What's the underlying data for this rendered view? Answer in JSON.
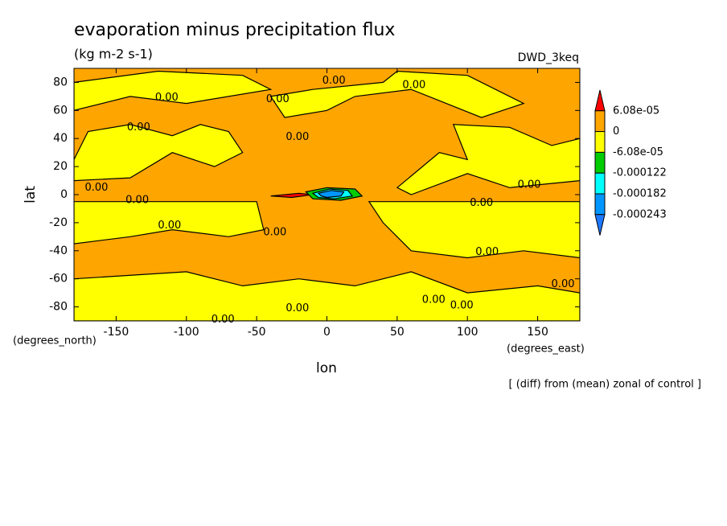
{
  "chart_data": {
    "type": "contour",
    "title": "evaporation minus precipitation flux",
    "subtitle": "(kg m-2 s-1)",
    "source": "DWD_3keq",
    "x_label": "lon",
    "y_label": "lat",
    "x_units": "(degrees_east)",
    "y_units": "(degrees_north)",
    "footnote": "[ (diff) from (mean) zonal of control ]",
    "xlim": [
      -180,
      180
    ],
    "xticks": [
      -150,
      -100,
      -50,
      0,
      50,
      100,
      150
    ],
    "ylim": [
      -90,
      90
    ],
    "yticks": [
      -80,
      -60,
      -40,
      -20,
      0,
      20,
      40,
      60,
      80
    ],
    "background_color": "#ffa500",
    "regions": [
      {
        "color": "#ffff00",
        "lon": [
          -180,
          -170,
          -140,
          -110,
          -90,
          -70,
          -60,
          -80,
          -110,
          -140,
          -180
        ],
        "lat": [
          25,
          45,
          50,
          42,
          50,
          45,
          30,
          20,
          30,
          12,
          10
        ]
      },
      {
        "color": "#ffff00",
        "lon": [
          50,
          80,
          100,
          90,
          130,
          160,
          180,
          180,
          130,
          100,
          60
        ],
        "lat": [
          5,
          30,
          25,
          50,
          48,
          35,
          40,
          10,
          5,
          15,
          0
        ]
      },
      {
        "color": "#ffff00",
        "lon": [
          -180,
          -120,
          -60,
          -40,
          -100,
          -140,
          -180
        ],
        "lat": [
          80,
          88,
          85,
          75,
          65,
          70,
          60
        ]
      },
      {
        "color": "#ffff00",
        "lon": [
          -40,
          -10,
          40,
          50,
          100,
          140,
          110,
          60,
          20,
          0,
          -30
        ],
        "lat": [
          70,
          75,
          80,
          88,
          85,
          65,
          55,
          75,
          70,
          60,
          55
        ]
      },
      {
        "color": "#ffff00",
        "lon": [
          -180,
          -50,
          -45,
          -70,
          -110,
          -140,
          -180
        ],
        "lat": [
          -5,
          -5,
          -25,
          -30,
          -25,
          -30,
          -35
        ]
      },
      {
        "color": "#ffff00",
        "lon": [
          30,
          180,
          180,
          140,
          100,
          60,
          40
        ],
        "lat": [
          -5,
          -5,
          -45,
          -40,
          -45,
          -40,
          -20
        ]
      },
      {
        "color": "#ffff00",
        "lon": [
          -180,
          -100,
          -60,
          -20,
          20,
          60,
          100,
          150,
          180,
          180,
          -180
        ],
        "lat": [
          -60,
          -55,
          -65,
          -60,
          -65,
          -55,
          -70,
          -65,
          -70,
          -90,
          -90
        ]
      },
      {
        "color": "#ff0000",
        "lon": [
          -40,
          -20,
          -10,
          -25
        ],
        "lat": [
          -1,
          1,
          0,
          -2
        ]
      },
      {
        "color": "#00cc00",
        "lon": [
          -15,
          0,
          20,
          25,
          10,
          -10
        ],
        "lat": [
          2,
          5,
          4,
          -1,
          -4,
          -3
        ]
      },
      {
        "color": "#00ffff",
        "lon": [
          -10,
          2,
          15,
          18,
          5,
          -6
        ],
        "lat": [
          1,
          4,
          3,
          -1,
          -3,
          -2
        ]
      },
      {
        "color": "#0096ff",
        "lon": [
          -6,
          3,
          12,
          10,
          0,
          -4
        ],
        "lat": [
          1,
          3,
          2,
          -1,
          -2,
          -1
        ]
      }
    ],
    "contour_labels": [
      {
        "label": "0.00",
        "lon": 5,
        "lat": 81
      },
      {
        "label": "0.00",
        "lon": 62,
        "lat": 78
      },
      {
        "label": "0.00",
        "lon": -114,
        "lat": 69
      },
      {
        "label": "0.00",
        "lon": -35,
        "lat": 68
      },
      {
        "label": "0.00",
        "lon": -134,
        "lat": 48
      },
      {
        "label": "0.00",
        "lon": -21,
        "lat": 41
      },
      {
        "label": "0.00",
        "lon": -164,
        "lat": 5
      },
      {
        "label": "0.00",
        "lon": -135,
        "lat": -4
      },
      {
        "label": "0.00",
        "lon": -112,
        "lat": -22
      },
      {
        "label": "0.00",
        "lon": -37,
        "lat": -27
      },
      {
        "label": "0.00",
        "lon": 110,
        "lat": -6
      },
      {
        "label": "0.00",
        "lon": 144,
        "lat": 7
      },
      {
        "label": "0.00",
        "lon": 114,
        "lat": -41
      },
      {
        "label": "0.00",
        "lon": 168,
        "lat": -64
      },
      {
        "label": "0.00",
        "lon": 76,
        "lat": -75
      },
      {
        "label": "0.00",
        "lon": 96,
        "lat": -79
      },
      {
        "label": "0.00",
        "lon": -21,
        "lat": -81
      },
      {
        "label": "0.00",
        "lon": -74,
        "lat": -89
      }
    ],
    "colorbar": {
      "levels": [
        {
          "value": 6.08e-05,
          "label": "6.08e-05"
        },
        0,
        {
          "value": -6.08e-05,
          "label": "-6.08e-05"
        },
        -0.000122,
        -0.000182,
        -0.000243
      ],
      "colors": [
        "#ff0000",
        "#ffa500",
        "#ffff00",
        "#00cc00",
        "#00ffff",
        "#0096ff",
        "#1e78ff"
      ]
    }
  }
}
